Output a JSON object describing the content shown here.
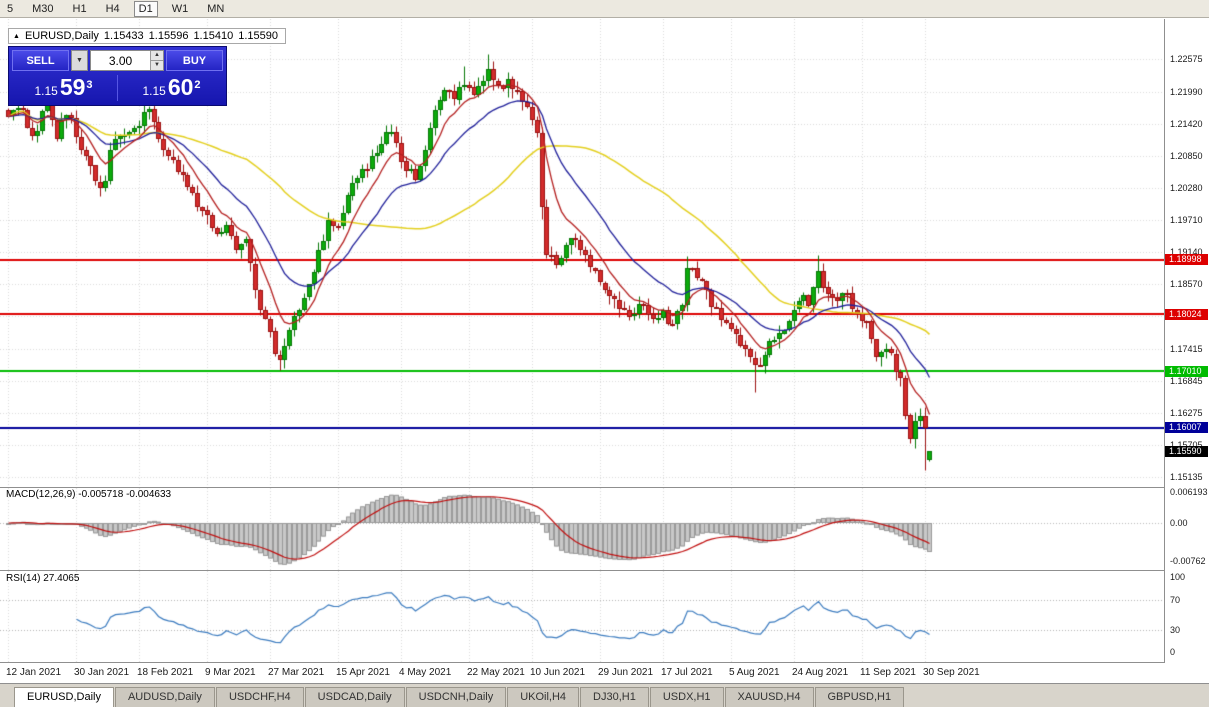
{
  "toolbar": {
    "timeframe_buttons": [
      {
        "label": "5",
        "active": false
      },
      {
        "label": "M30",
        "active": false
      },
      {
        "label": "H1",
        "active": false
      },
      {
        "label": "H4",
        "active": false
      },
      {
        "label": "D1",
        "active": true
      },
      {
        "label": "W1",
        "active": false
      },
      {
        "label": "MN",
        "active": false
      }
    ]
  },
  "quote": {
    "arrow_icon": "▲",
    "symbol_period": "EURUSD,Daily",
    "open": "1.15433",
    "high": "1.15596",
    "low": "1.15410",
    "close": "1.15590"
  },
  "trade_panel": {
    "sell_label": "SELL",
    "buy_label": "BUY",
    "volume": "3.00",
    "lot_dropdown_icon": "▼",
    "spin_up_icon": "▲",
    "spin_down_icon": "▼",
    "sell_price": {
      "prefix": "1.15",
      "big": "59",
      "sup": "3"
    },
    "buy_price": {
      "prefix": "1.15",
      "big": "60",
      "sup": "2"
    }
  },
  "chart_data": {
    "type": "candlestick",
    "symbol": "EURUSD",
    "period": "Daily",
    "num_candles": 191,
    "up_color": "#0caa0c",
    "up_border": "#067806",
    "down_color": "#d22c2c",
    "down_border": "#9c1212",
    "x_labels": [
      "12 Jan 2021",
      "30 Jan 2021",
      "18 Feb 2021",
      "9 Mar 2021",
      "27 Mar 2021",
      "15 Apr 2021",
      "4 May 2021",
      "22 May 2021",
      "10 Jun 2021",
      "29 Jun 2021",
      "17 Jul 2021",
      "5 Aug 2021",
      "24 Aug 2021",
      "11 Sep 2021",
      "30 Sep 2021"
    ],
    "y_axis": {
      "labels": [
        "1.22575",
        "1.21990",
        "1.21420",
        "1.20850",
        "1.20280",
        "1.19710",
        "1.19140",
        "1.18570",
        "1.17415",
        "1.16845",
        "1.16275",
        "1.15705",
        "1.15135"
      ],
      "hidden_gridline": 1.1799
    },
    "anchors": [
      [
        0,
        1.2155
      ],
      [
        2,
        1.217
      ],
      [
        5,
        1.212
      ],
      [
        8,
        1.2185
      ],
      [
        10,
        1.2115
      ],
      [
        12,
        1.2158
      ],
      [
        16,
        1.2085
      ],
      [
        19,
        1.2028
      ],
      [
        22,
        1.2115
      ],
      [
        26,
        1.2135
      ],
      [
        29,
        1.2168
      ],
      [
        32,
        1.2095
      ],
      [
        34,
        1.2078
      ],
      [
        37,
        1.203
      ],
      [
        40,
        1.1988
      ],
      [
        43,
        1.1945
      ],
      [
        45,
        1.1962
      ],
      [
        47,
        1.1918
      ],
      [
        49,
        1.1936
      ],
      [
        51,
        1.1846
      ],
      [
        53,
        1.1795
      ],
      [
        56,
        1.1722
      ],
      [
        58,
        1.1775
      ],
      [
        60,
        1.181
      ],
      [
        62,
        1.1856
      ],
      [
        64,
        1.1917
      ],
      [
        66,
        1.1971
      ],
      [
        68,
        1.196
      ],
      [
        70,
        1.2015
      ],
      [
        73,
        1.2062
      ],
      [
        76,
        1.209
      ],
      [
        79,
        1.2128
      ],
      [
        81,
        1.2075
      ],
      [
        84,
        1.2042
      ],
      [
        86,
        1.2096
      ],
      [
        88,
        1.2167
      ],
      [
        90,
        1.2203
      ],
      [
        92,
        1.2185
      ],
      [
        94,
        1.2212
      ],
      [
        96,
        1.2194
      ],
      [
        99,
        1.2239
      ],
      [
        101,
        1.2212
      ],
      [
        103,
        1.2221
      ],
      [
        105,
        1.22
      ],
      [
        107,
        1.2172
      ],
      [
        109,
        1.2126
      ],
      [
        110,
        1.1994
      ],
      [
        111,
        1.1908
      ],
      [
        113,
        1.189
      ],
      [
        115,
        1.1926
      ],
      [
        117,
        1.1935
      ],
      [
        119,
        1.1908
      ],
      [
        121,
        1.1881
      ],
      [
        123,
        1.1846
      ],
      [
        125,
        1.1829
      ],
      [
        127,
        1.1811
      ],
      [
        129,
        1.1803
      ],
      [
        131,
        1.182
      ],
      [
        133,
        1.1793
      ],
      [
        135,
        1.1811
      ],
      [
        137,
        1.1785
      ],
      [
        139,
        1.182
      ],
      [
        140,
        1.1886
      ],
      [
        143,
        1.1862
      ],
      [
        145,
        1.1815
      ],
      [
        147,
        1.1793
      ],
      [
        150,
        1.1766
      ],
      [
        152,
        1.174
      ],
      [
        154,
        1.1713
      ],
      [
        156,
        1.1731
      ],
      [
        158,
        1.1757
      ],
      [
        160,
        1.1775
      ],
      [
        162,
        1.1811
      ],
      [
        164,
        1.1837
      ],
      [
        165,
        1.1818
      ],
      [
        167,
        1.188
      ],
      [
        169,
        1.1838
      ],
      [
        171,
        1.1826
      ],
      [
        173,
        1.184
      ],
      [
        175,
        1.1805
      ],
      [
        177,
        1.179
      ],
      [
        179,
        1.1726
      ],
      [
        181,
        1.174
      ],
      [
        183,
        1.17
      ],
      [
        184,
        1.169
      ],
      [
        186,
        1.158
      ],
      [
        188,
        1.1621
      ],
      [
        189,
        1.1599
      ],
      [
        190,
        1.1559
      ]
    ],
    "high_overrides": [
      [
        94,
        1.2245
      ],
      [
        99,
        1.2266
      ],
      [
        140,
        1.1906
      ],
      [
        167,
        1.1909
      ]
    ],
    "low_overrides": [
      [
        56,
        1.1704
      ],
      [
        110,
        1.1972
      ],
      [
        154,
        1.1664
      ],
      [
        184,
        1.1675
      ],
      [
        189,
        1.1526
      ]
    ],
    "last_candle": {
      "open": 1.15433,
      "high": 1.15596,
      "low": 1.1541,
      "close": 1.1559
    },
    "moving_averages": [
      {
        "type": "sma",
        "period": 50,
        "color": "#e3cf1e",
        "line_width": 1.5
      },
      {
        "type": "ema",
        "period": 20,
        "color": "#20209a",
        "line_width": 1.3
      },
      {
        "type": "ema",
        "period": 8,
        "color": "#b42020",
        "line_width": 1.3
      }
    ],
    "h_lines": [
      {
        "price": 1.18998,
        "label": "1.18998",
        "color": "#dd0000",
        "width": 2
      },
      {
        "price": 1.18024,
        "label": "1.18024",
        "color": "#dd0000",
        "width": 2
      },
      {
        "price": 1.1701,
        "label": "1.17010",
        "color": "#00bb00",
        "width": 2
      },
      {
        "price": 1.16007,
        "label": "1.16007",
        "color": "#000099",
        "width": 2
      }
    ],
    "current_price": {
      "value": 1.1559,
      "label": "1.15590",
      "color": "#000000"
    },
    "indicators": {
      "macd": {
        "label": "MACD(12,26,9)",
        "values": "-0.005718 -0.004633",
        "fast": 12,
        "slow": 26,
        "signal": 9,
        "axis_labels": [
          "0.006193",
          "0.00",
          "-0.00762"
        ],
        "histogram_color": "#c8c8c8",
        "histogram_border": "#9a9a9a",
        "signal_color": "#c01010"
      },
      "rsi": {
        "label": "RSI(14)",
        "value": "27.4065",
        "period": 14,
        "axis_labels": [
          "100",
          "70",
          "30",
          "0"
        ],
        "levels": [
          70,
          30
        ],
        "color": "#3b7bbf"
      }
    }
  },
  "tabs": {
    "items": [
      {
        "label": "EURUSD,Daily",
        "active": true
      },
      {
        "label": "AUDUSD,Daily",
        "active": false
      },
      {
        "label": "USDCHF,H4",
        "active": false
      },
      {
        "label": "USDCAD,Daily",
        "active": false
      },
      {
        "label": "USDCNH,Daily",
        "active": false
      },
      {
        "label": "UKOil,H4",
        "active": false
      },
      {
        "label": "DJ30,H1",
        "active": false
      },
      {
        "label": "USDX,H1",
        "active": false
      },
      {
        "label": "XAUUSD,H4",
        "active": false
      },
      {
        "label": "GBPUSD,H1",
        "active": false
      }
    ]
  }
}
